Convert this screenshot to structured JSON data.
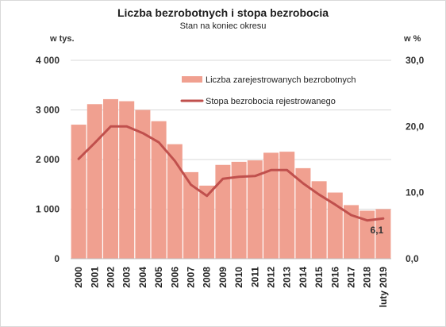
{
  "chart_data": {
    "type": "bar+line",
    "title": "Liczba bezrobotnych i stopa bezrobocia",
    "subtitle": "Stan na koniec okresu",
    "y_left_unit": "w tys.",
    "y_right_unit": "w %",
    "y_left_range": [
      0,
      4000
    ],
    "y_right_range": [
      0,
      30
    ],
    "y_left_ticks": [
      "0",
      "1 000",
      "2 000",
      "3 000",
      "4 000"
    ],
    "y_right_ticks": [
      "0,0",
      "10,0",
      "20,0",
      "30,0"
    ],
    "categories": [
      "2000",
      "2001",
      "2002",
      "2003",
      "2004",
      "2005",
      "2006",
      "2007",
      "2008",
      "2009",
      "2010",
      "2011",
      "2012",
      "2013",
      "2014",
      "2015",
      "2016",
      "2017",
      "2018",
      "luty 2019"
    ],
    "series": [
      {
        "name": "Liczba zarejestrowanych bezrobotnych",
        "type": "bar",
        "axis": "left",
        "color": "#f0a090",
        "values": [
          2703,
          3116,
          3217,
          3176,
          3000,
          2773,
          2309,
          1746,
          1474,
          1892,
          1954,
          1983,
          2137,
          2158,
          1826,
          1563,
          1335,
          1081,
          969,
          1000
        ]
      },
      {
        "name": "Stopa bezrobocia rejestrowanego",
        "type": "line",
        "axis": "right",
        "color": "#c0504d",
        "values": [
          15.1,
          17.5,
          20.0,
          20.0,
          19.0,
          17.6,
          14.8,
          11.2,
          9.5,
          12.1,
          12.4,
          12.5,
          13.4,
          13.4,
          11.4,
          9.7,
          8.2,
          6.6,
          5.8,
          6.1
        ]
      }
    ],
    "annotations": [
      {
        "category": "luty 2019",
        "series": "Stopa bezrobocia rejestrowanego",
        "text": "6,1"
      }
    ],
    "grid": true,
    "legend": "inside-top-right"
  }
}
